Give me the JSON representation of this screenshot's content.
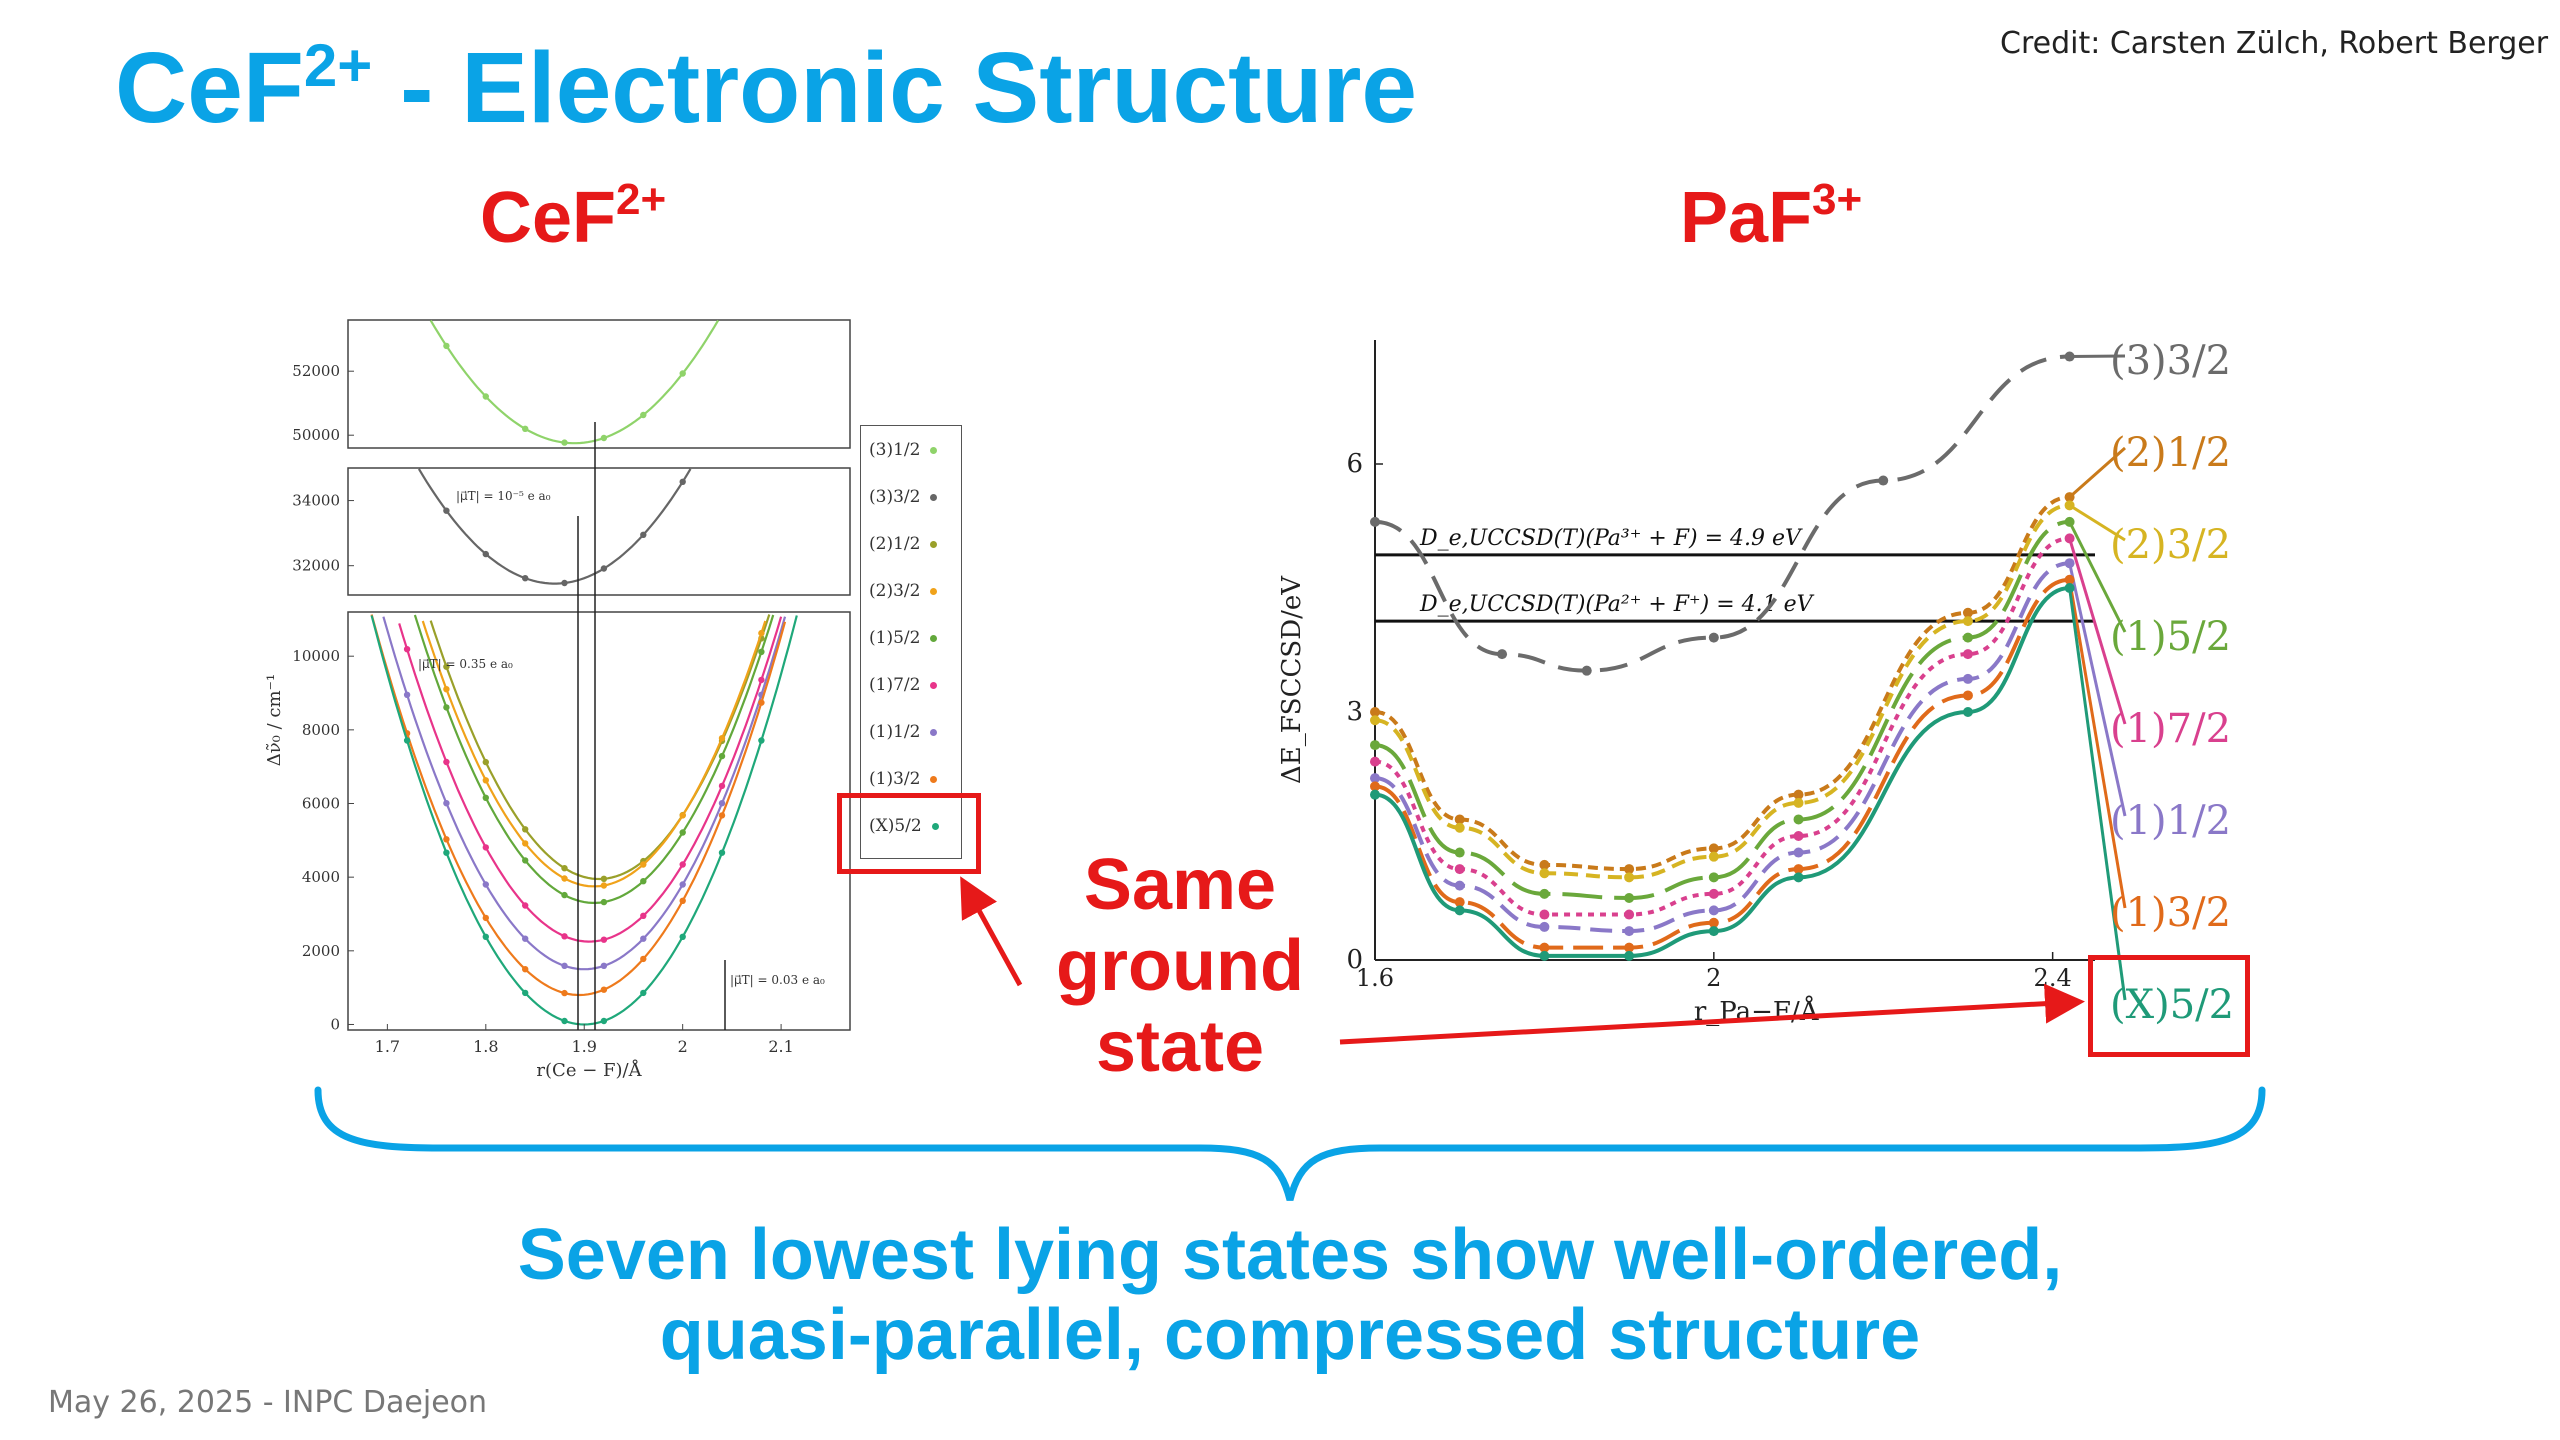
{
  "slide": {
    "title_main": "CeF",
    "title_sup": "2+",
    "title_rest": " - Electronic Structure",
    "credit": "Credit: Carsten Zülch, Robert Berger",
    "footer": "May 26, 2025 - INPC Daejeon"
  },
  "cef": {
    "heading": "CeF",
    "heading_sup": "2+"
  },
  "paf": {
    "heading": "PaF",
    "heading_sup": "3+"
  },
  "annotation": {
    "line1": "Same",
    "line2": "ground",
    "line3": "state"
  },
  "conclusion": {
    "line1": "Seven lowest lying states show well-ordered,",
    "line2": "quasi-parallel, compressed structure"
  },
  "colors": {
    "title_blue": "#0aa3e6",
    "highlight_red": "#e61919"
  },
  "chart_data": [
    {
      "type": "line",
      "xlabel": "r(Ce − F)/Å",
      "ylabel": "Δν̃₀ / cm⁻¹",
      "xlim": [
        1.66,
        2.17
      ],
      "x_ticks": [
        "1.7",
        "1.8",
        "1.9",
        "2",
        "2.1"
      ],
      "panels": [
        {
          "ylim": [
            49600,
            53600
          ],
          "y_ticks": [
            "50000",
            "52000"
          ]
        },
        {
          "ylim": [
            31100,
            35000
          ],
          "y_ticks": [
            "32000",
            "34000"
          ]
        },
        {
          "ylim": [
            -150,
            11200
          ],
          "y_ticks": [
            "0",
            "2000",
            "4000",
            "6000",
            "8000",
            "10000"
          ]
        }
      ],
      "annotations": [
        "|μ⃗T| = 10⁻⁵ e a₀",
        "|μ⃗T| = 0.35 e a₀",
        "|μ⃗T| = 0.03 e a₀"
      ],
      "legend_position": "right",
      "series": [
        {
          "name": "(3)1/2",
          "color": "#8fd36a",
          "panel": 0,
          "x0": 1.89,
          "min": 49750,
          "k": 180000
        },
        {
          "name": "(3)3/2",
          "color": "#666666",
          "panel": 1,
          "x0": 1.87,
          "min": 31450,
          "k": 185000
        },
        {
          "name": "(2)1/2",
          "color": "#9aa02a",
          "panel": 2,
          "x0": 1.915,
          "min": 3950,
          "k": 240000
        },
        {
          "name": "(2)3/2",
          "color": "#f0a21a",
          "panel": 2,
          "x0": 1.91,
          "min": 3750,
          "k": 238000
        },
        {
          "name": "(1)5/2",
          "color": "#62a83b",
          "panel": 2,
          "x0": 1.91,
          "min": 3300,
          "k": 236000
        },
        {
          "name": "(1)7/2",
          "color": "#e8348a",
          "panel": 2,
          "x0": 1.905,
          "min": 2250,
          "k": 232000
        },
        {
          "name": "(1)1/2",
          "color": "#8a78c8",
          "panel": 2,
          "x0": 1.9,
          "min": 1500,
          "k": 230000
        },
        {
          "name": "(1)3/2",
          "color": "#ee7a1c",
          "panel": 2,
          "x0": 1.895,
          "min": 800,
          "k": 232000
        },
        {
          "name": "(X)5/2",
          "color": "#1fa87a",
          "panel": 2,
          "x0": 1.9,
          "min": 0,
          "k": 238000
        }
      ]
    },
    {
      "type": "line",
      "xlabel": "r_Pa−F/Å",
      "ylabel": "ΔE_FSCCSD/eV",
      "xlim": [
        1.6,
        2.45
      ],
      "ylim": [
        0,
        7.5
      ],
      "x_ticks": [
        "1.6",
        "2",
        "2.4"
      ],
      "y_ticks": [
        "0",
        "3",
        "6"
      ],
      "hlines": [
        {
          "y": 4.9,
          "label": "D_e,UCCSD(T)(Pa³⁺ + F) = 4.9 eV"
        },
        {
          "y": 4.1,
          "label": "D_e,UCCSD(T)(Pa²⁺ + F⁺) = 4.1 eV"
        }
      ],
      "series": [
        {
          "name": "(3)3/2",
          "color": "#6b6b6b",
          "x": [
            1.6,
            1.75,
            1.85,
            2.0,
            2.2,
            2.42
          ],
          "y": [
            5.3,
            3.7,
            3.5,
            3.9,
            5.8,
            7.3
          ]
        },
        {
          "name": "(2)1/2",
          "color": "#c97a1a",
          "x": [
            1.6,
            1.7,
            1.8,
            1.9,
            2.0,
            2.1,
            2.3,
            2.42
          ],
          "y": [
            3.0,
            1.7,
            1.15,
            1.1,
            1.35,
            2.0,
            4.2,
            5.6
          ]
        },
        {
          "name": "(2)3/2",
          "color": "#d6b422",
          "x": [
            1.6,
            1.7,
            1.8,
            1.9,
            2.0,
            2.1,
            2.3,
            2.42
          ],
          "y": [
            2.9,
            1.6,
            1.05,
            1.0,
            1.25,
            1.9,
            4.1,
            5.5
          ]
        },
        {
          "name": "(1)5/2",
          "color": "#6aa83b",
          "x": [
            1.6,
            1.7,
            1.8,
            1.9,
            2.0,
            2.1,
            2.3,
            2.42
          ],
          "y": [
            2.6,
            1.3,
            0.8,
            0.75,
            1.0,
            1.7,
            3.9,
            5.3
          ]
        },
        {
          "name": "(1)7/2",
          "color": "#d9408e",
          "x": [
            1.6,
            1.7,
            1.8,
            1.9,
            2.0,
            2.1,
            2.3,
            2.42
          ],
          "y": [
            2.4,
            1.1,
            0.55,
            0.55,
            0.8,
            1.5,
            3.7,
            5.1
          ]
        },
        {
          "name": "(1)1/2",
          "color": "#8a78c8",
          "x": [
            1.6,
            1.7,
            1.8,
            1.9,
            2.0,
            2.1,
            2.3,
            2.42
          ],
          "y": [
            2.2,
            0.9,
            0.4,
            0.35,
            0.6,
            1.3,
            3.4,
            4.8
          ]
        },
        {
          "name": "(1)3/2",
          "color": "#e06a1a",
          "x": [
            1.6,
            1.7,
            1.8,
            1.9,
            2.0,
            2.1,
            2.3,
            2.42
          ],
          "y": [
            2.1,
            0.7,
            0.15,
            0.15,
            0.45,
            1.1,
            3.2,
            4.6
          ]
        },
        {
          "name": "(X)5/2",
          "color": "#1f9a78",
          "x": [
            1.6,
            1.7,
            1.8,
            1.9,
            2.0,
            2.1,
            2.3,
            2.42
          ],
          "y": [
            2.0,
            0.6,
            0.05,
            0.05,
            0.35,
            1.0,
            3.0,
            4.5
          ]
        }
      ]
    }
  ]
}
